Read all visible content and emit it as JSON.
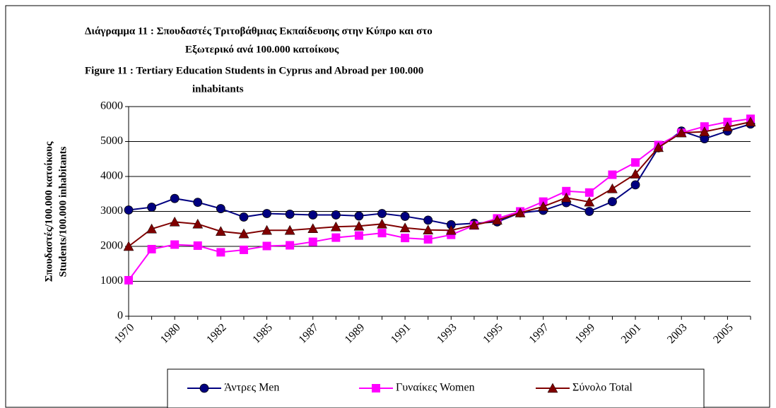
{
  "chart_data": {
    "type": "line",
    "title_lines": [
      "Διάγραμμα 11 :  Σπουδαστές Τριτοβάθμιας Εκπαίδευσης στην Κύπρο και στο",
      "Εξωτερικό  ανά 100.000  κατοίκους",
      "Figure        11 :  Tertiary Education Students in Cyprus and Abroad per 100.000",
      "inhabitants"
    ],
    "y_label_lines": [
      "Σπουδαστές/100.000 κατοίκους",
      "Students/100.000 inhabitants"
    ],
    "categories": [
      "1970",
      null,
      "1980",
      null,
      "1982",
      null,
      "1985",
      null,
      "1987",
      null,
      "1989",
      null,
      "1991",
      null,
      "1993",
      null,
      "1995",
      null,
      "1997",
      null,
      "1999",
      null,
      "2001",
      null,
      "2003",
      null,
      "2005",
      null
    ],
    "series": [
      {
        "name": "Άντρες Men",
        "color": "#000080",
        "marker": "circle",
        "values": [
          3040,
          3120,
          3370,
          3260,
          3080,
          2840,
          2940,
          2920,
          2900,
          2900,
          2870,
          2940,
          2860,
          2750,
          2620,
          2660,
          2700,
          2960,
          3030,
          3250,
          3000,
          3280,
          3760,
          4820,
          5300,
          5080,
          5300,
          5500
        ]
      },
      {
        "name": "Γυναίκες Women",
        "color": "#ff00ff",
        "marker": "square",
        "values": [
          1030,
          1920,
          2050,
          2020,
          1830,
          1900,
          2010,
          2030,
          2130,
          2250,
          2310,
          2380,
          2240,
          2200,
          2330,
          2600,
          2800,
          3000,
          3280,
          3580,
          3540,
          4050,
          4400,
          4900,
          5250,
          5430,
          5560,
          5650
        ]
      },
      {
        "name": "Σύνολο Total",
        "color": "#800000",
        "marker": "triangle",
        "values": [
          2000,
          2500,
          2700,
          2640,
          2430,
          2360,
          2460,
          2460,
          2510,
          2560,
          2580,
          2640,
          2530,
          2470,
          2460,
          2610,
          2750,
          2960,
          3140,
          3390,
          3270,
          3650,
          4070,
          4830,
          5250,
          5280,
          5420,
          5560
        ]
      }
    ],
    "ylim": [
      0,
      6000
    ],
    "yticks": [
      0,
      1000,
      2000,
      3000,
      4000,
      5000,
      6000
    ],
    "grid": true,
    "legend": "bottom"
  }
}
